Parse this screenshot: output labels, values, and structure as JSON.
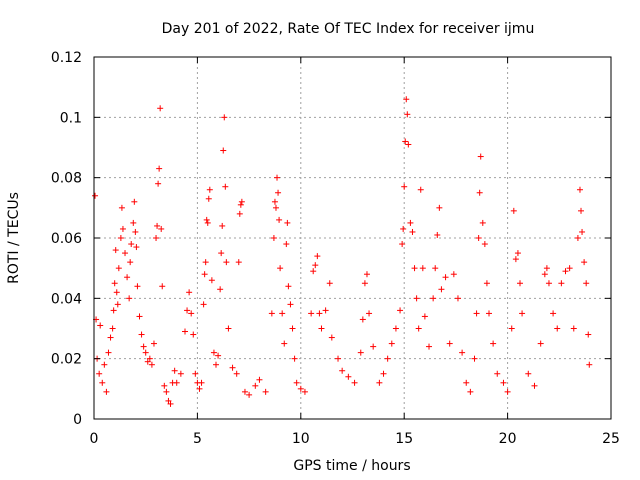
{
  "chart_data": {
    "type": "scatter",
    "title": "Day 201 of 2022, Rate Of TEC Index for receiver ijmu",
    "xlabel": "GPS time / hours",
    "ylabel": "ROTI / TECUs",
    "xlim": [
      0,
      25
    ],
    "ylim": [
      0,
      0.12
    ],
    "xticks": [
      0,
      5,
      10,
      15,
      20,
      25
    ],
    "yticks": [
      0,
      0.02,
      0.04,
      0.06,
      0.08,
      0.1,
      0.12
    ],
    "ytick_labels": [
      "0",
      "0.02",
      "0.04",
      "0.06",
      "0.08",
      "0.1",
      "0.12"
    ],
    "grid": true,
    "marker": "+",
    "color": "#ff0000",
    "series": [
      {
        "points": [
          [
            0.05,
            0.074
          ],
          [
            0.1,
            0.033
          ],
          [
            0.15,
            0.02
          ],
          [
            0.25,
            0.015
          ],
          [
            0.3,
            0.031
          ],
          [
            0.4,
            0.012
          ],
          [
            0.5,
            0.018
          ],
          [
            0.6,
            0.009
          ],
          [
            0.7,
            0.022
          ],
          [
            0.8,
            0.027
          ],
          [
            0.9,
            0.03
          ],
          [
            0.95,
            0.036
          ],
          [
            1.0,
            0.045
          ],
          [
            1.05,
            0.056
          ],
          [
            1.1,
            0.042
          ],
          [
            1.15,
            0.038
          ],
          [
            1.2,
            0.05
          ],
          [
            1.3,
            0.06
          ],
          [
            1.35,
            0.07
          ],
          [
            1.4,
            0.063
          ],
          [
            1.5,
            0.055
          ],
          [
            1.6,
            0.047
          ],
          [
            1.7,
            0.04
          ],
          [
            1.75,
            0.052
          ],
          [
            1.8,
            0.058
          ],
          [
            1.9,
            0.065
          ],
          [
            1.95,
            0.072
          ],
          [
            2.0,
            0.062
          ],
          [
            2.05,
            0.057
          ],
          [
            2.1,
            0.044
          ],
          [
            2.2,
            0.034
          ],
          [
            2.3,
            0.028
          ],
          [
            2.4,
            0.024
          ],
          [
            2.5,
            0.022
          ],
          [
            2.6,
            0.019
          ],
          [
            2.7,
            0.02
          ],
          [
            2.8,
            0.018
          ],
          [
            2.9,
            0.025
          ],
          [
            3.0,
            0.06
          ],
          [
            3.05,
            0.064
          ],
          [
            3.1,
            0.078
          ],
          [
            3.15,
            0.083
          ],
          [
            3.2,
            0.103
          ],
          [
            3.25,
            0.063
          ],
          [
            3.3,
            0.044
          ],
          [
            3.4,
            0.011
          ],
          [
            3.5,
            0.009
          ],
          [
            3.6,
            0.006
          ],
          [
            3.7,
            0.005
          ],
          [
            3.8,
            0.012
          ],
          [
            3.9,
            0.016
          ],
          [
            4.0,
            0.012
          ],
          [
            4.2,
            0.015
          ],
          [
            4.4,
            0.029
          ],
          [
            4.5,
            0.036
          ],
          [
            4.6,
            0.042
          ],
          [
            4.7,
            0.035
          ],
          [
            4.8,
            0.028
          ],
          [
            4.9,
            0.015
          ],
          [
            5.0,
            0.012
          ],
          [
            5.1,
            0.01
          ],
          [
            5.2,
            0.012
          ],
          [
            5.3,
            0.038
          ],
          [
            5.35,
            0.048
          ],
          [
            5.4,
            0.052
          ],
          [
            5.45,
            0.066
          ],
          [
            5.5,
            0.065
          ],
          [
            5.55,
            0.073
          ],
          [
            5.6,
            0.076
          ],
          [
            5.7,
            0.046
          ],
          [
            5.8,
            0.022
          ],
          [
            5.9,
            0.018
          ],
          [
            6.0,
            0.021
          ],
          [
            6.1,
            0.043
          ],
          [
            6.15,
            0.055
          ],
          [
            6.2,
            0.064
          ],
          [
            6.25,
            0.089
          ],
          [
            6.3,
            0.1
          ],
          [
            6.35,
            0.077
          ],
          [
            6.4,
            0.052
          ],
          [
            6.5,
            0.03
          ],
          [
            6.7,
            0.017
          ],
          [
            6.9,
            0.015
          ],
          [
            7.0,
            0.052
          ],
          [
            7.05,
            0.068
          ],
          [
            7.1,
            0.071
          ],
          [
            7.15,
            0.072
          ],
          [
            7.3,
            0.009
          ],
          [
            7.5,
            0.008
          ],
          [
            7.8,
            0.011
          ],
          [
            8.0,
            0.013
          ],
          [
            8.3,
            0.009
          ],
          [
            8.6,
            0.035
          ],
          [
            8.7,
            0.06
          ],
          [
            8.75,
            0.072
          ],
          [
            8.8,
            0.07
          ],
          [
            8.85,
            0.08
          ],
          [
            8.9,
            0.075
          ],
          [
            8.95,
            0.066
          ],
          [
            9.0,
            0.05
          ],
          [
            9.1,
            0.035
          ],
          [
            9.2,
            0.025
          ],
          [
            9.3,
            0.058
          ],
          [
            9.35,
            0.065
          ],
          [
            9.4,
            0.044
          ],
          [
            9.5,
            0.038
          ],
          [
            9.6,
            0.03
          ],
          [
            9.7,
            0.02
          ],
          [
            9.8,
            0.012
          ],
          [
            10.0,
            0.01
          ],
          [
            10.2,
            0.009
          ],
          [
            10.5,
            0.035
          ],
          [
            10.6,
            0.049
          ],
          [
            10.7,
            0.051
          ],
          [
            10.8,
            0.054
          ],
          [
            10.9,
            0.035
          ],
          [
            11.0,
            0.03
          ],
          [
            11.2,
            0.036
          ],
          [
            11.4,
            0.045
          ],
          [
            11.5,
            0.027
          ],
          [
            11.8,
            0.02
          ],
          [
            12.0,
            0.016
          ],
          [
            12.3,
            0.014
          ],
          [
            12.6,
            0.012
          ],
          [
            12.9,
            0.022
          ],
          [
            13.0,
            0.033
          ],
          [
            13.1,
            0.045
          ],
          [
            13.2,
            0.048
          ],
          [
            13.3,
            0.035
          ],
          [
            13.5,
            0.024
          ],
          [
            13.8,
            0.012
          ],
          [
            14.0,
            0.015
          ],
          [
            14.2,
            0.02
          ],
          [
            14.4,
            0.025
          ],
          [
            14.6,
            0.03
          ],
          [
            14.8,
            0.036
          ],
          [
            14.9,
            0.058
          ],
          [
            14.95,
            0.063
          ],
          [
            15.0,
            0.077
          ],
          [
            15.05,
            0.092
          ],
          [
            15.1,
            0.106
          ],
          [
            15.15,
            0.101
          ],
          [
            15.2,
            0.091
          ],
          [
            15.3,
            0.065
          ],
          [
            15.4,
            0.062
          ],
          [
            15.5,
            0.05
          ],
          [
            15.6,
            0.04
          ],
          [
            15.7,
            0.03
          ],
          [
            15.8,
            0.076
          ],
          [
            15.9,
            0.05
          ],
          [
            16.0,
            0.034
          ],
          [
            16.2,
            0.024
          ],
          [
            16.4,
            0.04
          ],
          [
            16.5,
            0.05
          ],
          [
            16.6,
            0.061
          ],
          [
            16.7,
            0.07
          ],
          [
            16.8,
            0.043
          ],
          [
            17.0,
            0.047
          ],
          [
            17.2,
            0.025
          ],
          [
            17.4,
            0.048
          ],
          [
            17.6,
            0.04
          ],
          [
            17.8,
            0.022
          ],
          [
            18.0,
            0.012
          ],
          [
            18.2,
            0.009
          ],
          [
            18.4,
            0.02
          ],
          [
            18.5,
            0.035
          ],
          [
            18.6,
            0.06
          ],
          [
            18.65,
            0.075
          ],
          [
            18.7,
            0.087
          ],
          [
            18.8,
            0.065
          ],
          [
            18.9,
            0.058
          ],
          [
            19.0,
            0.045
          ],
          [
            19.1,
            0.035
          ],
          [
            19.3,
            0.025
          ],
          [
            19.5,
            0.015
          ],
          [
            19.8,
            0.012
          ],
          [
            20.0,
            0.009
          ],
          [
            20.2,
            0.03
          ],
          [
            20.3,
            0.069
          ],
          [
            20.4,
            0.053
          ],
          [
            20.5,
            0.055
          ],
          [
            20.6,
            0.045
          ],
          [
            20.7,
            0.035
          ],
          [
            21.0,
            0.015
          ],
          [
            21.3,
            0.011
          ],
          [
            21.6,
            0.025
          ],
          [
            21.8,
            0.048
          ],
          [
            21.9,
            0.05
          ],
          [
            22.0,
            0.045
          ],
          [
            22.2,
            0.035
          ],
          [
            22.4,
            0.03
          ],
          [
            22.6,
            0.045
          ],
          [
            22.8,
            0.049
          ],
          [
            23.0,
            0.05
          ],
          [
            23.2,
            0.03
          ],
          [
            23.4,
            0.06
          ],
          [
            23.5,
            0.076
          ],
          [
            23.55,
            0.069
          ],
          [
            23.6,
            0.062
          ],
          [
            23.7,
            0.052
          ],
          [
            23.8,
            0.045
          ],
          [
            23.9,
            0.028
          ],
          [
            23.95,
            0.018
          ]
        ]
      }
    ]
  }
}
